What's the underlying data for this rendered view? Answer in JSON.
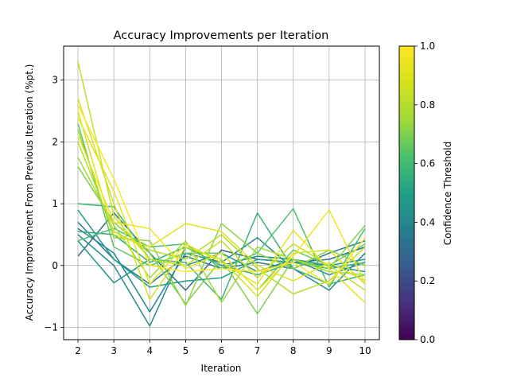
{
  "chart_data": {
    "type": "line",
    "title": "Accuracy Improvements per Iteration",
    "xlabel": "Iteration",
    "ylabel": "Accuracy Improvement From Previous Iteration (%pt.)",
    "x": [
      2,
      3,
      4,
      5,
      6,
      7,
      8,
      9,
      10
    ],
    "xlim": [
      1.6,
      10.4
    ],
    "ylim": [
      -1.2,
      3.55
    ],
    "xticks": [
      "2",
      "3",
      "4",
      "5",
      "6",
      "7",
      "8",
      "9",
      "10"
    ],
    "yticks": [
      -1,
      0,
      1,
      2,
      3
    ],
    "ytick_labels": [
      "−1",
      "0",
      "1",
      "2",
      "3"
    ],
    "grid": true,
    "colormap": "viridis",
    "colorbar": {
      "label": "Confidence Threshold",
      "range": [
        0.0,
        1.0
      ],
      "ticks": [
        0.0,
        0.2,
        0.4,
        0.6,
        0.8,
        1.0
      ],
      "tick_labels": [
        "0.0",
        "0.2",
        "0.4",
        "0.6",
        "0.8",
        "1.0"
      ]
    },
    "series": [
      {
        "c": 0.3,
        "values": [
          0.15,
          0.85,
          0.2,
          -0.4,
          0.25,
          0.1,
          0.05,
          0.1,
          0.3
        ]
      },
      {
        "c": 0.35,
        "values": [
          0.7,
          0.1,
          -0.3,
          0.15,
          -0.05,
          0.05,
          -0.05,
          0.2,
          0.4
        ]
      },
      {
        "c": 0.4,
        "values": [
          0.6,
          0.2,
          -0.75,
          0.2,
          0.05,
          0.45,
          -0.05,
          -0.4,
          0.2
        ]
      },
      {
        "c": 0.42,
        "values": [
          0.5,
          0.0,
          -0.98,
          0.3,
          0.0,
          0.15,
          0.1,
          -0.15,
          0.05
        ]
      },
      {
        "c": 0.45,
        "values": [
          0.4,
          -0.28,
          0.1,
          0.0,
          0.2,
          -0.1,
          0.1,
          0.0,
          0.1
        ]
      },
      {
        "c": 0.48,
        "values": [
          0.9,
          0.1,
          -0.35,
          -0.25,
          -0.2,
          0.1,
          0.05,
          0.0,
          -0.1
        ]
      },
      {
        "c": 0.55,
        "values": [
          0.55,
          0.5,
          0.05,
          0.3,
          0.0,
          -0.15,
          0.05,
          -0.05,
          0.05
        ]
      },
      {
        "c": 0.58,
        "values": [
          1.0,
          0.95,
          0.1,
          0.05,
          -0.55,
          0.85,
          -0.05,
          -0.3,
          -0.15
        ]
      },
      {
        "c": 0.62,
        "values": [
          0.4,
          0.6,
          0.3,
          0.35,
          -0.05,
          0.2,
          0.92,
          -0.35,
          0.6
        ]
      },
      {
        "c": 0.66,
        "values": [
          2.3,
          0.3,
          0.0,
          0.2,
          0.2,
          -0.4,
          0.25,
          0.0,
          0.35
        ]
      },
      {
        "c": 0.7,
        "values": [
          1.6,
          0.7,
          0.2,
          -0.62,
          0.1,
          -0.78,
          0.1,
          -0.05,
          0.65
        ]
      },
      {
        "c": 0.72,
        "values": [
          2.2,
          0.45,
          0.4,
          -0.65,
          0.68,
          0.2,
          -0.05,
          0.25,
          0.0
        ]
      },
      {
        "c": 0.76,
        "values": [
          1.75,
          0.65,
          -0.2,
          0.4,
          -0.6,
          0.3,
          0.1,
          -0.1,
          -0.15
        ]
      },
      {
        "c": 0.8,
        "values": [
          2.0,
          0.55,
          0.25,
          0.1,
          0.5,
          -0.05,
          -0.46,
          -0.25,
          0.3
        ]
      },
      {
        "c": 0.84,
        "values": [
          3.3,
          0.8,
          0.1,
          0.0,
          0.4,
          -0.2,
          0.35,
          0.0,
          -0.4
        ]
      },
      {
        "c": 0.87,
        "values": [
          2.7,
          1.0,
          -0.55,
          0.3,
          0.1,
          -0.5,
          0.2,
          0.25,
          -0.3
        ]
      },
      {
        "c": 0.9,
        "values": [
          2.5,
          0.5,
          0.3,
          0.68,
          0.55,
          0.0,
          -0.25,
          0.05,
          -0.25
        ]
      },
      {
        "c": 0.93,
        "values": [
          2.4,
          1.2,
          -0.3,
          0.35,
          0.05,
          -0.3,
          0.57,
          -0.05,
          -0.6
        ]
      },
      {
        "c": 0.96,
        "values": [
          2.1,
          0.7,
          0.6,
          -0.05,
          0.2,
          -0.4,
          0.15,
          0.9,
          -0.28
        ]
      },
      {
        "c": 1.0,
        "values": [
          2.6,
          1.4,
          0.0,
          -0.1,
          -0.05,
          -0.1,
          0.05,
          -0.3,
          0.45
        ]
      }
    ]
  }
}
